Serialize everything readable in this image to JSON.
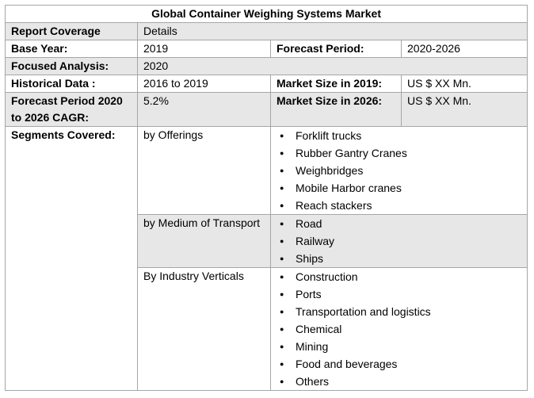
{
  "title": "Global Container Weighing Systems Market",
  "header": {
    "label": "Report Coverage",
    "value": "Details"
  },
  "base_year": {
    "label": "Base Year:",
    "value": "2019"
  },
  "forecast_period": {
    "label": "Forecast Period:",
    "value": "2020-2026"
  },
  "focused_analysis": {
    "label": "Focused Analysis:",
    "value": "2020"
  },
  "historical_data": {
    "label": "Historical Data :",
    "value": "2016 to 2019"
  },
  "market_size_2019": {
    "label": "Market Size in 2019:",
    "value": "US $ XX Mn."
  },
  "cagr": {
    "label": "Forecast Period 2020 to 2026 CAGR:",
    "value": "5.2%"
  },
  "market_size_2026": {
    "label": "Market Size in 2026:",
    "value": "US $ XX Mn."
  },
  "segments": {
    "label": "Segments Covered:",
    "groups": [
      {
        "name": "by Offerings",
        "items": [
          "Forklift trucks",
          "Rubber Gantry Cranes",
          "Weighbridges",
          "Mobile Harbor cranes",
          "Reach stackers"
        ]
      },
      {
        "name": "by Medium of Transport",
        "items": [
          "Road",
          "Railway",
          "Ships"
        ]
      },
      {
        "name": "By Industry Verticals",
        "items": [
          "Construction",
          "Ports",
          "Transportation and logistics",
          "Chemical",
          "Mining",
          "Food and beverages",
          "Others"
        ]
      }
    ]
  }
}
